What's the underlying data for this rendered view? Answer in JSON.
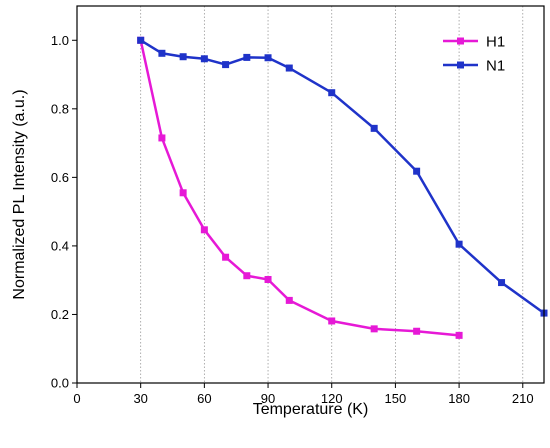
{
  "chart_data": {
    "type": "line",
    "title": "",
    "xlabel": "Temperature (K)",
    "ylabel": "Normalized PL Intensity (a.u.)",
    "xlim": [
      0,
      220
    ],
    "ylim": [
      0.0,
      1.1
    ],
    "xticks": [
      0,
      30,
      60,
      90,
      120,
      150,
      180,
      210
    ],
    "yticks": [
      0.0,
      0.2,
      0.4,
      0.6,
      0.8,
      1.0
    ],
    "xtick_labels": [
      "0",
      "30",
      "60",
      "90",
      "120",
      "150",
      "180",
      "210"
    ],
    "ytick_labels": [
      "0.0",
      "0.2",
      "0.4",
      "0.6",
      "0.8",
      "1.0"
    ],
    "grid": "vertical dotted lines at x ticks",
    "legend_position": "top-right",
    "series": [
      {
        "name": "H1",
        "color": "#e619d6",
        "marker": "square",
        "x": [
          30,
          40,
          50,
          60,
          70,
          80,
          90,
          100,
          120,
          140,
          160,
          180
        ],
        "y": [
          1.0,
          0.715,
          0.555,
          0.447,
          0.367,
          0.313,
          0.302,
          0.241,
          0.181,
          0.158,
          0.151,
          0.139
        ]
      },
      {
        "name": "N1",
        "color": "#1f33c9",
        "marker": "square",
        "x": [
          30,
          40,
          50,
          60,
          70,
          80,
          90,
          100,
          120,
          140,
          160,
          180,
          200,
          220
        ],
        "y": [
          1.0,
          0.962,
          0.952,
          0.946,
          0.929,
          0.95,
          0.949,
          0.919,
          0.847,
          0.743,
          0.618,
          0.405,
          0.293,
          0.204
        ]
      }
    ]
  }
}
